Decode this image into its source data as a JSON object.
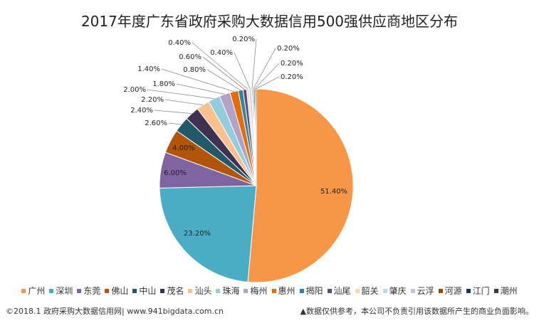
{
  "chart_data": {
    "type": "pie",
    "title": "2017年度广东省政府采购大数据信用500强供应商地区分布",
    "slices": [
      {
        "name": "广州",
        "value": 51.4,
        "label": "51.40%",
        "color": "#F79646"
      },
      {
        "name": "深圳",
        "value": 23.2,
        "label": "23.20%",
        "color": "#4BACC6"
      },
      {
        "name": "东莞",
        "value": 6.0,
        "label": "6.00%",
        "color": "#8064A2"
      },
      {
        "name": "佛山",
        "value": 4.0,
        "label": "4.00%",
        "color": "#B25409"
      },
      {
        "name": "中山",
        "value": 2.6,
        "label": "2.60%",
        "color": "#215968"
      },
      {
        "name": "茂名",
        "value": 2.4,
        "label": "2.40%",
        "color": "#3F3151"
      },
      {
        "name": "汕头",
        "value": 2.2,
        "label": "2.20%",
        "color": "#FAC090"
      },
      {
        "name": "珠海",
        "value": 2.0,
        "label": "2.00%",
        "color": "#93CDDD"
      },
      {
        "name": "梅州",
        "value": 1.8,
        "label": "1.80%",
        "color": "#B3A2C7"
      },
      {
        "name": "惠州",
        "value": 1.4,
        "label": "1.40%",
        "color": "#E46C0A"
      },
      {
        "name": "揭阳",
        "value": 0.8,
        "label": "0.80%",
        "color": "#31859C"
      },
      {
        "name": "汕尾",
        "value": 0.6,
        "label": "0.60%",
        "color": "#604A7B"
      },
      {
        "name": "韶关",
        "value": 0.4,
        "label": "0.40%",
        "color": "#FCD5B5"
      },
      {
        "name": "肇庆",
        "value": 0.4,
        "label": "0.40%",
        "color": "#B7DEE8"
      },
      {
        "name": "云浮",
        "value": 0.2,
        "label": "0.20%",
        "color": "#CCC1DA"
      },
      {
        "name": "河源",
        "value": 0.2,
        "label": "0.20%",
        "color": "#984807"
      },
      {
        "name": "江门",
        "value": 0.2,
        "label": "0.20%",
        "color": "#17375E"
      },
      {
        "name": "潮州",
        "value": 0.2,
        "label": "0.20%",
        "color": "#403151"
      }
    ],
    "legend_position": "bottom"
  },
  "footer": {
    "left": "©2018.1 政府采购大数据信用网| www.941bigdata.com.cn",
    "right": "▲数据仅供参考，本公司不负责引用该数据所产生的商业负面影响。"
  }
}
